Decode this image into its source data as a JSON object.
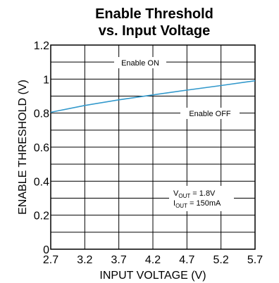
{
  "chart_data": {
    "type": "line",
    "title_line1": "Enable Threshold",
    "title_line2": "vs. Input Voltage",
    "xlabel": "INPUT VOLTAGE (V)",
    "ylabel": "ENABLE THRESHOLD (V)",
    "xlim": [
      2.7,
      5.7
    ],
    "ylim": [
      0,
      1.2
    ],
    "x_ticks": [
      "2.7",
      "3.2",
      "3.7",
      "4.2",
      "4.7",
      "5.2",
      "5.7"
    ],
    "y_ticks": [
      "0",
      "0.2",
      "0.4",
      "0.6",
      "0.8",
      "1",
      "1.2"
    ],
    "grid": true,
    "series": [
      {
        "color": "#3399cc",
        "x": [
          2.7,
          3.2,
          3.7,
          4.2,
          4.7,
          5.2,
          5.7
        ],
        "y": [
          0.805,
          0.845,
          0.878,
          0.907,
          0.935,
          0.962,
          0.99
        ]
      }
    ],
    "annotations": {
      "enable_on": "Enable ON",
      "enable_off": "Enable OFF",
      "vout_main": "V",
      "vout_sub": "OUT",
      "vout_value": " = 1.8V",
      "iout_main": "I",
      "iout_sub": "OUT",
      "iout_value": " = 150mA"
    }
  }
}
